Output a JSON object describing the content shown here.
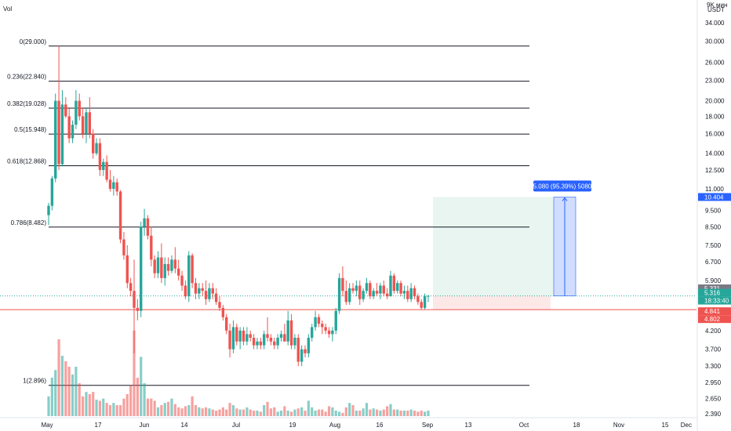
{
  "header": {
    "vol_label": "Vol",
    "scale_top": "9K мин",
    "currency": "USDT"
  },
  "colors": {
    "up": "#26a69a",
    "down": "#ef5350",
    "fib_line": "#131722",
    "measure": "#2962ff",
    "target_zone": "#e8f5f0",
    "stop_zone": "#fde8e8",
    "support_line": "#ef5350"
  },
  "chart_data": {
    "type": "candlestick",
    "y_scale": "log",
    "ylim": [
      2.3,
      38.0
    ],
    "x_tick_labels": [
      "May",
      "17",
      "Jun",
      "14",
      "Jul",
      "19",
      "Aug",
      "16",
      "Sep",
      "13",
      "Oct",
      "18",
      "Nov",
      "15",
      "Dec"
    ],
    "y_tick_labels": [
      "34.000",
      "30.000",
      "26.000",
      "23.000",
      "20.000",
      "18.000",
      "16.000",
      "14.000",
      "12.500",
      "11.000",
      "9.500",
      "8.500",
      "7.500",
      "6.700",
      "5.900",
      "4.200",
      "3.700",
      "3.300",
      "2.950",
      "2.650",
      "2.390"
    ],
    "fib_levels": [
      {
        "label": "0(29.000)",
        "value": 29.0
      },
      {
        "label": "0.236(22.840)",
        "value": 22.84
      },
      {
        "label": "0.382(19.028)",
        "value": 19.028
      },
      {
        "label": "0.5(15.948)",
        "value": 15.948
      },
      {
        "label": "0.618(12.868)",
        "value": 12.868
      },
      {
        "label": "0.786(8.482)",
        "value": 8.482
      },
      {
        "label": "1(2.896)",
        "value": 2.896
      }
    ],
    "support_level": 4.841,
    "entry_level": 5.316,
    "target_level": 10.404,
    "measurement_label": "5.080 (95.39%) 5080",
    "price_tags": [
      {
        "label": "10.404",
        "value": 10.404,
        "color": "#2962ff"
      },
      {
        "label": "5.331",
        "value": 5.331,
        "color": "#787b86"
      },
      {
        "label": "5.316",
        "value": 5.316,
        "color": "#26a69a"
      },
      {
        "label": "18:33:40",
        "value": 5.316,
        "color": "#26a69a"
      },
      {
        "label": "4.841",
        "value": 4.841,
        "color": "#ef5350"
      },
      {
        "label": "4.802",
        "value": 4.802,
        "color": "#ef5350"
      }
    ],
    "candles": [
      [
        9.2,
        10.0,
        8.6,
        9.8
      ],
      [
        9.8,
        12.0,
        9.5,
        11.8
      ],
      [
        11.8,
        21.0,
        11.5,
        20.0
      ],
      [
        20.0,
        29.0,
        12.5,
        13.0
      ],
      [
        13.0,
        21.5,
        12.8,
        19.5
      ],
      [
        19.5,
        20.5,
        17.8,
        18.0
      ],
      [
        18.0,
        19.0,
        15.0,
        15.5
      ],
      [
        15.5,
        17.5,
        15.0,
        17.0
      ],
      [
        17.0,
        21.5,
        16.5,
        20.0
      ],
      [
        20.0,
        21.0,
        17.5,
        18.0
      ],
      [
        18.0,
        19.0,
        15.5,
        16.0
      ],
      [
        16.0,
        19.0,
        15.0,
        18.5
      ],
      [
        18.5,
        20.5,
        15.5,
        16.0
      ],
      [
        16.0,
        16.5,
        13.5,
        14.0
      ],
      [
        14.0,
        15.5,
        13.8,
        15.0
      ],
      [
        15.0,
        15.5,
        12.0,
        12.5
      ],
      [
        12.5,
        13.5,
        12.0,
        13.2
      ],
      [
        13.2,
        13.8,
        11.5,
        11.7
      ],
      [
        11.7,
        12.5,
        10.8,
        11.0
      ],
      [
        11.0,
        12.0,
        10.5,
        11.5
      ],
      [
        11.5,
        11.8,
        10.5,
        10.8
      ],
      [
        10.8,
        10.9,
        7.6,
        7.8
      ],
      [
        7.8,
        8.2,
        6.8,
        7.0
      ],
      [
        7.0,
        7.5,
        5.6,
        5.8
      ],
      [
        5.8,
        6.0,
        5.3,
        5.5
      ],
      [
        5.5,
        6.8,
        3.6,
        4.9
      ],
      [
        4.9,
        5.2,
        4.5,
        4.8
      ],
      [
        4.8,
        8.8,
        4.6,
        8.5
      ],
      [
        8.5,
        9.6,
        8.0,
        9.0
      ],
      [
        9.0,
        9.2,
        7.8,
        8.0
      ],
      [
        8.0,
        8.5,
        6.5,
        6.8
      ],
      [
        6.8,
        7.0,
        6.0,
        6.2
      ],
      [
        6.2,
        7.2,
        6.0,
        6.9
      ],
      [
        6.9,
        7.6,
        5.8,
        6.0
      ],
      [
        6.0,
        6.9,
        5.7,
        6.6
      ],
      [
        6.6,
        6.9,
        6.1,
        6.3
      ],
      [
        6.3,
        7.0,
        6.2,
        6.8
      ],
      [
        6.8,
        7.4,
        6.2,
        6.4
      ],
      [
        6.4,
        6.8,
        5.9,
        6.1
      ],
      [
        6.1,
        6.3,
        5.5,
        5.7
      ],
      [
        5.7,
        5.9,
        5.2,
        5.3
      ],
      [
        5.3,
        7.2,
        5.1,
        7.0
      ],
      [
        7.0,
        7.1,
        5.6,
        5.8
      ],
      [
        5.8,
        6.0,
        5.2,
        5.4
      ],
      [
        5.4,
        5.8,
        5.2,
        5.6
      ],
      [
        5.6,
        5.8,
        5.3,
        5.5
      ],
      [
        5.5,
        5.9,
        5.0,
        5.2
      ],
      [
        5.2,
        5.8,
        5.1,
        5.6
      ],
      [
        5.6,
        5.8,
        5.2,
        5.4
      ],
      [
        5.4,
        5.6,
        5.0,
        5.1
      ],
      [
        5.1,
        5.3,
        4.8,
        4.9
      ],
      [
        4.9,
        5.0,
        4.5,
        4.6
      ],
      [
        4.6,
        4.7,
        4.1,
        4.2
      ],
      [
        4.2,
        4.4,
        3.5,
        3.7
      ],
      [
        3.7,
        4.5,
        3.6,
        4.3
      ],
      [
        4.3,
        4.4,
        3.8,
        3.9
      ],
      [
        3.9,
        4.3,
        3.7,
        4.2
      ],
      [
        4.2,
        4.3,
        3.8,
        3.9
      ],
      [
        3.9,
        4.3,
        3.8,
        4.1
      ],
      [
        4.1,
        4.2,
        3.9,
        4.0
      ],
      [
        4.0,
        4.1,
        3.7,
        3.8
      ],
      [
        3.8,
        4.0,
        3.7,
        3.9
      ],
      [
        3.9,
        4.0,
        3.7,
        3.8
      ],
      [
        3.8,
        4.2,
        3.7,
        4.1
      ],
      [
        4.1,
        4.6,
        3.9,
        4.0
      ],
      [
        4.0,
        4.1,
        3.8,
        3.9
      ],
      [
        3.9,
        4.0,
        3.7,
        3.8
      ],
      [
        3.8,
        4.1,
        3.7,
        4.0
      ],
      [
        4.0,
        4.2,
        3.9,
        4.1
      ],
      [
        4.1,
        4.4,
        3.9,
        3.9
      ],
      [
        3.9,
        4.8,
        3.8,
        4.5
      ],
      [
        4.5,
        4.7,
        3.7,
        3.8
      ],
      [
        3.8,
        4.1,
        3.7,
        4.0
      ],
      [
        4.0,
        4.1,
        3.3,
        3.4
      ],
      [
        3.4,
        3.8,
        3.3,
        3.7
      ],
      [
        3.7,
        3.8,
        3.5,
        3.6
      ],
      [
        3.6,
        4.1,
        3.5,
        4.0
      ],
      [
        4.0,
        4.4,
        3.9,
        4.3
      ],
      [
        4.3,
        4.8,
        4.2,
        4.6
      ],
      [
        4.6,
        4.7,
        4.3,
        4.4
      ],
      [
        4.4,
        4.5,
        4.1,
        4.3
      ],
      [
        4.3,
        4.4,
        4.1,
        4.2
      ],
      [
        4.2,
        4.3,
        4.0,
        4.1
      ],
      [
        4.1,
        4.3,
        3.9,
        4.2
      ],
      [
        4.2,
        4.9,
        4.1,
        4.8
      ],
      [
        4.8,
        6.2,
        4.7,
        6.0
      ],
      [
        6.0,
        6.5,
        5.3,
        5.5
      ],
      [
        5.5,
        5.9,
        5.0,
        5.1
      ],
      [
        5.1,
        5.8,
        5.0,
        5.6
      ],
      [
        5.6,
        5.8,
        5.4,
        5.5
      ],
      [
        5.5,
        5.9,
        5.3,
        5.7
      ],
      [
        5.7,
        5.9,
        5.0,
        5.2
      ],
      [
        5.2,
        5.6,
        5.1,
        5.5
      ],
      [
        5.5,
        6.0,
        5.4,
        5.8
      ],
      [
        5.8,
        5.9,
        5.2,
        5.3
      ],
      [
        5.3,
        5.6,
        5.2,
        5.5
      ],
      [
        5.5,
        5.8,
        5.3,
        5.4
      ],
      [
        5.4,
        5.8,
        5.2,
        5.7
      ],
      [
        5.7,
        5.9,
        5.3,
        5.4
      ],
      [
        5.4,
        5.6,
        5.2,
        5.3
      ],
      [
        5.3,
        6.3,
        5.3,
        6.1
      ],
      [
        6.1,
        6.2,
        5.4,
        5.5
      ],
      [
        5.5,
        5.9,
        5.4,
        5.8
      ],
      [
        5.8,
        5.9,
        5.3,
        5.4
      ],
      [
        5.4,
        5.7,
        5.2,
        5.5
      ],
      [
        5.5,
        5.7,
        5.1,
        5.2
      ],
      [
        5.2,
        5.8,
        5.1,
        5.6
      ],
      [
        5.6,
        5.7,
        5.2,
        5.3
      ],
      [
        5.3,
        5.4,
        5.0,
        5.1
      ],
      [
        5.1,
        5.2,
        4.85,
        4.9
      ],
      [
        4.9,
        5.4,
        4.85,
        5.3
      ],
      [
        5.3,
        5.35,
        5.1,
        5.316
      ]
    ],
    "volume_levels": [
      0.18,
      0.35,
      0.42,
      0.7,
      0.55,
      0.5,
      0.45,
      0.38,
      0.45,
      0.3,
      0.18,
      0.22,
      0.2,
      0.22,
      0.15,
      0.14,
      0.16,
      0.12,
      0.1,
      0.12,
      0.1,
      0.1,
      0.16,
      0.2,
      0.28,
      0.78,
      0.35,
      0.54,
      0.3,
      0.16,
      0.16,
      0.14,
      0.08,
      0.1,
      0.12,
      0.13,
      0.16,
      0.11,
      0.08,
      0.07,
      0.09,
      0.1,
      0.18,
      0.1,
      0.08,
      0.07,
      0.08,
      0.07,
      0.06,
      0.05,
      0.06,
      0.08,
      0.06,
      0.12,
      0.1,
      0.07,
      0.06,
      0.06,
      0.08,
      0.06,
      0.05,
      0.05,
      0.04,
      0.1,
      0.13,
      0.07,
      0.08,
      0.04,
      0.05,
      0.09,
      0.05,
      0.04,
      0.06,
      0.07,
      0.08,
      0.05,
      0.14,
      0.08,
      0.05,
      0.06,
      0.06,
      0.04,
      0.09,
      0.08,
      0.05,
      0.04,
      0.03,
      0.08,
      0.12,
      0.1,
      0.05,
      0.05,
      0.07,
      0.12,
      0.06,
      0.07,
      0.06,
      0.05,
      0.06,
      0.09,
      0.11,
      0.06,
      0.06,
      0.05,
      0.05,
      0.05,
      0.06,
      0.05,
      0.04,
      0.05,
      0.04,
      0.05
    ]
  }
}
